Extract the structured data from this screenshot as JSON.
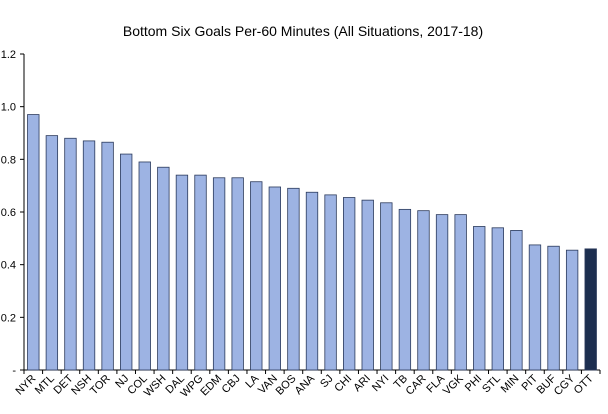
{
  "chart_data": {
    "type": "bar",
    "title": "Bottom Six Goals Per-60 Minutes (All Situations, 2017-18)",
    "xlabel": "",
    "ylabel": "",
    "ylim": [
      0,
      1.2
    ],
    "yticks": [
      "-",
      "0.2",
      "0.4",
      "0.6",
      "0.8",
      "1.0",
      "1.2"
    ],
    "grid": false,
    "legend": "none",
    "categories": [
      "NYR",
      "MTL",
      "DET",
      "NSH",
      "TOR",
      "NJ",
      "COL",
      "WSH",
      "DAL",
      "WPG",
      "EDM",
      "CBJ",
      "LA",
      "VAN",
      "BOS",
      "ANA",
      "SJ",
      "CHI",
      "ARI",
      "NYI",
      "TB",
      "CAR",
      "FLA",
      "VGK",
      "PHI",
      "STL",
      "MIN",
      "PIT",
      "BUF",
      "CGY",
      "OTT"
    ],
    "values": [
      0.97,
      0.89,
      0.88,
      0.87,
      0.865,
      0.82,
      0.79,
      0.77,
      0.74,
      0.74,
      0.73,
      0.73,
      0.715,
      0.695,
      0.69,
      0.675,
      0.665,
      0.655,
      0.645,
      0.635,
      0.61,
      0.605,
      0.59,
      0.59,
      0.545,
      0.54,
      0.53,
      0.475,
      0.47,
      0.455,
      0.46
    ],
    "highlight_category": "OTT",
    "colors": {
      "bar_fill": "#9DB3E3",
      "bar_stroke": "#2B3A5C",
      "highlight_fill": "#1C2E4F",
      "axis": "#000000"
    }
  }
}
